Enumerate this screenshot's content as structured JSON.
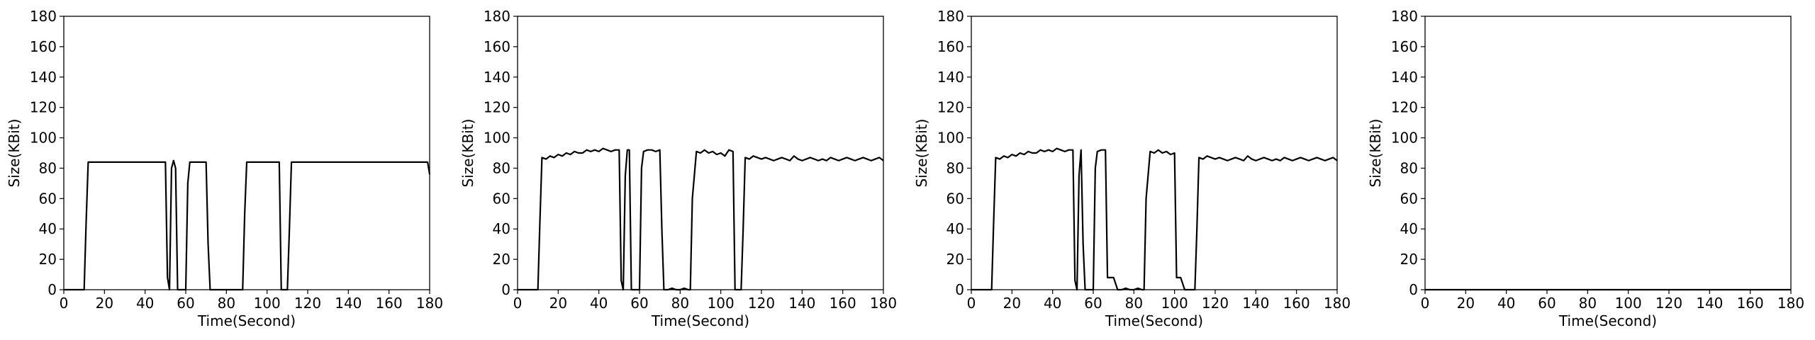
{
  "chart_data": [
    {
      "type": "line",
      "xlabel": "Time(Second)",
      "ylabel": "Size(KBit)",
      "xlim": [
        0,
        180
      ],
      "ylim": [
        0,
        180
      ],
      "xticks": [
        "0",
        "20",
        "40",
        "60",
        "80",
        "100",
        "120",
        "140",
        "160",
        "180"
      ],
      "yticks": [
        "0",
        "20",
        "40",
        "60",
        "80",
        "100",
        "120",
        "140",
        "160",
        "180"
      ],
      "grid": false,
      "series": [
        {
          "color": "#000000",
          "x": [
            0,
            10,
            11,
            12,
            30,
            50,
            51,
            52,
            53,
            54,
            55,
            56,
            57,
            58,
            60,
            61,
            62,
            70,
            71,
            72,
            88,
            89,
            90,
            106,
            107,
            110,
            111,
            112,
            179,
            180
          ],
          "y": [
            0,
            0,
            45,
            84,
            84,
            84,
            8,
            0,
            80,
            85,
            80,
            0,
            0,
            0,
            0,
            70,
            84,
            84,
            30,
            0,
            0,
            50,
            84,
            84,
            0,
            0,
            40,
            84,
            84,
            76
          ]
        }
      ]
    },
    {
      "type": "line",
      "xlabel": "Time(Second)",
      "ylabel": "Size(KBit)",
      "xlim": [
        0,
        180
      ],
      "ylim": [
        0,
        180
      ],
      "xticks": [
        "0",
        "20",
        "40",
        "60",
        "80",
        "100",
        "120",
        "140",
        "160",
        "180"
      ],
      "yticks": [
        "0",
        "20",
        "40",
        "60",
        "80",
        "100",
        "120",
        "140",
        "160",
        "180"
      ],
      "grid": false,
      "series": [
        {
          "color": "#000000",
          "x": [
            0,
            10,
            11,
            12,
            14,
            16,
            18,
            20,
            22,
            24,
            26,
            28,
            30,
            32,
            34,
            36,
            38,
            40,
            42,
            44,
            46,
            48,
            50,
            51,
            52,
            53,
            54,
            55,
            56,
            57,
            58,
            60,
            61,
            62,
            64,
            66,
            68,
            70,
            71,
            72,
            74,
            76,
            78,
            80,
            82,
            84,
            85,
            86,
            88,
            90,
            92,
            94,
            96,
            98,
            100,
            102,
            104,
            106,
            107,
            110,
            111,
            112,
            114,
            116,
            118,
            120,
            122,
            124,
            126,
            128,
            130,
            132,
            134,
            136,
            138,
            140,
            142,
            144,
            146,
            148,
            150,
            152,
            154,
            156,
            158,
            160,
            162,
            164,
            166,
            168,
            170,
            172,
            174,
            176,
            178,
            180
          ],
          "y": [
            0,
            0,
            45,
            87,
            86,
            88,
            87,
            89,
            88,
            90,
            89,
            91,
            90,
            90,
            92,
            91,
            92,
            91,
            93,
            92,
            91,
            92,
            92,
            6,
            0,
            75,
            92,
            92,
            0,
            0,
            0,
            0,
            80,
            91,
            92,
            92,
            91,
            92,
            40,
            0,
            0,
            1,
            0,
            0,
            1,
            0,
            0,
            60,
            91,
            90,
            92,
            90,
            91,
            89,
            90,
            88,
            92,
            91,
            0,
            0,
            40,
            87,
            86,
            88,
            87,
            86,
            87,
            86,
            85,
            86,
            87,
            86,
            85,
            88,
            86,
            85,
            86,
            87,
            86,
            85,
            86,
            85,
            87,
            86,
            85,
            86,
            87,
            86,
            85,
            86,
            87,
            86,
            85,
            86,
            87,
            85
          ]
        }
      ]
    },
    {
      "type": "line",
      "xlabel": "Time(Second)",
      "ylabel": "Size(KBit)",
      "xlim": [
        0,
        180
      ],
      "ylim": [
        0,
        180
      ],
      "xticks": [
        "0",
        "20",
        "40",
        "60",
        "80",
        "100",
        "120",
        "140",
        "160",
        "180"
      ],
      "yticks": [
        "0",
        "20",
        "40",
        "60",
        "80",
        "100",
        "120",
        "140",
        "160",
        "180"
      ],
      "grid": false,
      "series": [
        {
          "color": "#000000",
          "x": [
            0,
            10,
            11,
            12,
            14,
            16,
            18,
            20,
            22,
            24,
            26,
            28,
            30,
            32,
            34,
            36,
            38,
            40,
            42,
            44,
            46,
            48,
            50,
            51,
            52,
            53,
            54,
            55,
            56,
            57,
            58,
            60,
            61,
            62,
            64,
            66,
            67,
            68,
            69,
            70,
            71,
            72,
            74,
            76,
            78,
            80,
            82,
            84,
            85,
            86,
            88,
            90,
            92,
            94,
            96,
            98,
            100,
            101,
            102,
            103,
            104,
            105,
            106,
            107,
            110,
            111,
            112,
            114,
            116,
            118,
            120,
            122,
            124,
            126,
            128,
            130,
            132,
            134,
            136,
            138,
            140,
            142,
            144,
            146,
            148,
            150,
            152,
            154,
            156,
            158,
            160,
            162,
            164,
            166,
            168,
            170,
            172,
            174,
            176,
            178,
            180
          ],
          "y": [
            0,
            0,
            45,
            87,
            86,
            88,
            87,
            89,
            88,
            90,
            89,
            91,
            90,
            90,
            92,
            91,
            92,
            91,
            93,
            92,
            91,
            92,
            92,
            6,
            0,
            75,
            92,
            30,
            0,
            0,
            0,
            0,
            80,
            91,
            92,
            92,
            8,
            8,
            8,
            8,
            4,
            0,
            0,
            1,
            0,
            0,
            1,
            0,
            0,
            60,
            91,
            90,
            92,
            90,
            91,
            89,
            90,
            8,
            8,
            8,
            4,
            0,
            0,
            0,
            0,
            40,
            87,
            86,
            88,
            87,
            86,
            87,
            86,
            85,
            86,
            87,
            86,
            85,
            88,
            86,
            85,
            86,
            87,
            86,
            85,
            86,
            85,
            87,
            86,
            85,
            86,
            87,
            86,
            85,
            86,
            87,
            86,
            85,
            86,
            87,
            85
          ]
        }
      ]
    },
    {
      "type": "line",
      "xlabel": "Time(Second)",
      "ylabel": "Size(KBit)",
      "xlim": [
        0,
        180
      ],
      "ylim": [
        0,
        180
      ],
      "xticks": [
        "0",
        "20",
        "40",
        "60",
        "80",
        "100",
        "120",
        "140",
        "160",
        "180"
      ],
      "yticks": [
        "0",
        "20",
        "40",
        "60",
        "80",
        "100",
        "120",
        "140",
        "160",
        "180"
      ],
      "grid": false,
      "series": [
        {
          "color": "#000000",
          "x": [
            0,
            180
          ],
          "y": [
            0,
            0
          ]
        }
      ]
    }
  ]
}
